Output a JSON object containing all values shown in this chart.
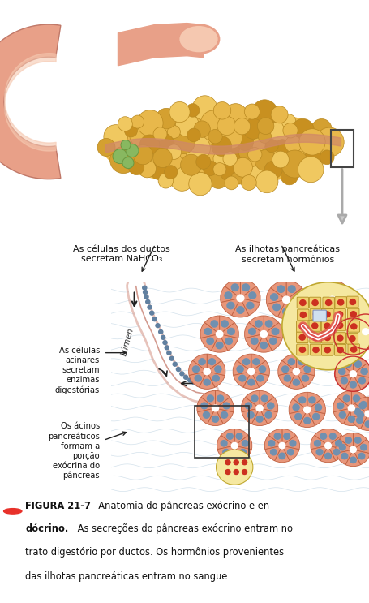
{
  "figsize": [
    4.56,
    7.43
  ],
  "dpi": 100,
  "bg_color": "#ffffff",
  "title_dot_color": "#e8312a",
  "caption_line1_bold": "FIGURA 21-7",
  "caption_line1_normal": "   Anatomia do pâncreas exócrino e en-",
  "caption_line2": "dócrino.",
  "caption_line2_normal": " As secreções do pâncreas exócrino entram no",
  "caption_line3": "trato digestório por ductos. Os hormônios provenientes",
  "caption_line4": "das ilhotas pancreáticas entram no sangue.",
  "label_ductos": "As células dos ductos\nsecretam NaHCO₃",
  "label_ilhotas": "As ilhotas pancreáticas\nsecretam hormônios",
  "label_acinares": "As células\nacinares\nsecretam\nenzimas\ndigestórias",
  "label_acinos": "Os ácinos\npancreáticos\nformam a\nporção\nexócrina do\npâncreas",
  "label_lumen": "Lúmen",
  "pancreas_color": "#e8b84b",
  "pancreas_bump_colors": [
    "#e8b84b",
    "#d4a030",
    "#f0c860",
    "#c89020"
  ],
  "duodenum_color": "#e8a088",
  "duodenum_inner": "#f5c8b0",
  "duct_color": "#e09880",
  "acinus_cell_color": "#e8967a",
  "acinus_edge_color": "#c06040",
  "nucleus_color": "#7090b0",
  "islet_bg": "#f5e8a0",
  "islet_cell_color": "#f0d070",
  "islet_nucleus_color": "#cc3020",
  "connective_color": "#c8dce8",
  "lumen_color": "#ffffff",
  "text_color": "#111111",
  "arrow_color": "#222222",
  "micro_bg": "#c8dce8"
}
